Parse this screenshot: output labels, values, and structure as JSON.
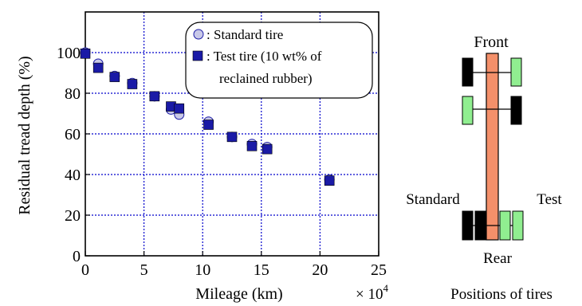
{
  "chart_data": {
    "type": "scatter",
    "xlabel": "Mileage (km)",
    "x_multiplier_label": "× 10",
    "x_multiplier_exp": "4",
    "ylabel": "Residual tread depth (%)",
    "xlim": [
      0,
      25
    ],
    "ylim": [
      0,
      120
    ],
    "xticks": [
      0,
      5,
      10,
      15,
      20,
      25
    ],
    "yticks": [
      0,
      20,
      40,
      60,
      80,
      100
    ],
    "grid": true,
    "grid_color": "#0000cc",
    "legend_position": "top-right",
    "legend": [
      {
        "label": "Standard tire",
        "marker": "circle"
      },
      {
        "label": "Test tire (10 wt% of",
        "label_line2": "reclained rubber)",
        "marker": "square"
      }
    ],
    "series": [
      {
        "name": "Standard tire",
        "marker": "circle",
        "color": "#c8c8e8",
        "points": [
          [
            0,
            100
          ],
          [
            1.1,
            94.5
          ],
          [
            2.5,
            88.5
          ],
          [
            4,
            85
          ],
          [
            5.9,
            78.5
          ],
          [
            7.3,
            72
          ],
          [
            8,
            69.5
          ],
          [
            10.5,
            66
          ],
          [
            12.5,
            58.5
          ],
          [
            14.2,
            55
          ],
          [
            15.5,
            53.5
          ],
          [
            20.8,
            37.5
          ]
        ]
      },
      {
        "name": "Test tire (10 wt% of reclained rubber)",
        "marker": "square",
        "color": "#1a1aa6",
        "points": [
          [
            0,
            99.5
          ],
          [
            1.1,
            92.5
          ],
          [
            2.5,
            88
          ],
          [
            4,
            84.5
          ],
          [
            5.9,
            78.5
          ],
          [
            7.3,
            73.5
          ],
          [
            8,
            72.5
          ],
          [
            10.5,
            64.5
          ],
          [
            12.5,
            58.5
          ],
          [
            14.2,
            54
          ],
          [
            15.5,
            52.5
          ],
          [
            20.8,
            37
          ]
        ]
      }
    ]
  },
  "diagram": {
    "front_label": "Front",
    "rear_label": "Rear",
    "standard_label": "Standard",
    "test_label": "Test",
    "caption": "Positions of tires",
    "colors": {
      "body": "#f4906a",
      "standard": "#000000",
      "test": "#90ee90"
    }
  }
}
